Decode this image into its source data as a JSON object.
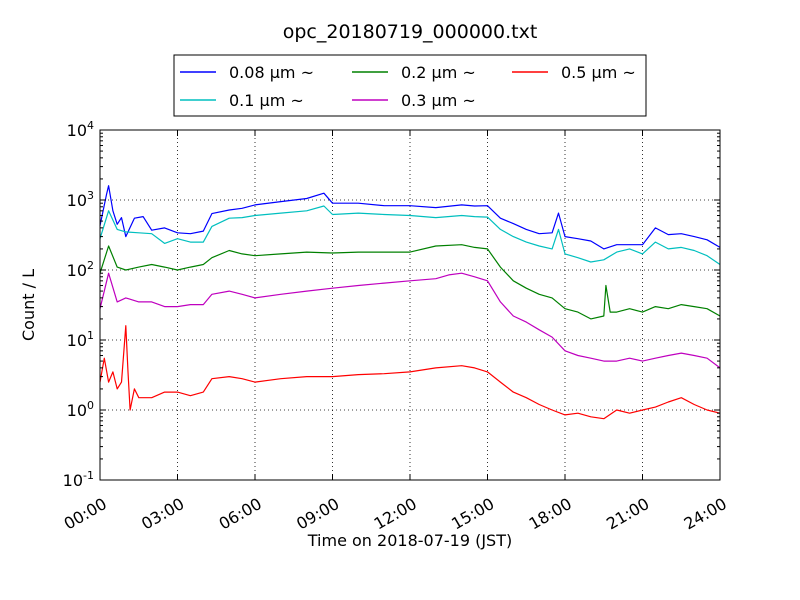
{
  "chart_data": {
    "type": "line",
    "title": "opc_20180719_000000.txt",
    "xlabel": "Time on 2018-07-19 (JST)",
    "ylabel": "Count / L",
    "y_scale": "log",
    "ylim": [
      0.1,
      10000
    ],
    "xlim": [
      "00:00",
      "24:00"
    ],
    "grid": true,
    "legend_position": "top",
    "x_ticks": [
      "00:00",
      "03:00",
      "06:00",
      "09:00",
      "12:00",
      "15:00",
      "18:00",
      "21:00",
      "24:00"
    ],
    "y_ticks": [
      {
        "base": "10",
        "exp": "-1"
      },
      {
        "base": "10",
        "exp": "0"
      },
      {
        "base": "10",
        "exp": "1"
      },
      {
        "base": "10",
        "exp": "2"
      },
      {
        "base": "10",
        "exp": "3"
      },
      {
        "base": "10",
        "exp": "4"
      }
    ],
    "series": [
      {
        "name": "0.08 μm ~",
        "color": "#0000ff",
        "x": [
          "00:00",
          "00:15",
          "00:20",
          "00:30",
          "00:40",
          "00:50",
          "01:00",
          "01:20",
          "01:40",
          "02:00",
          "02:30",
          "03:00",
          "03:30",
          "04:00",
          "04:20",
          "05:00",
          "05:30",
          "06:00",
          "07:00",
          "08:00",
          "08:40",
          "09:00",
          "10:00",
          "11:00",
          "12:00",
          "13:00",
          "14:00",
          "14:30",
          "15:00",
          "15:30",
          "16:00",
          "16:30",
          "17:00",
          "17:30",
          "17:45",
          "18:00",
          "18:30",
          "19:00",
          "19:30",
          "20:00",
          "20:30",
          "21:00",
          "21:30",
          "22:00",
          "22:30",
          "23:00",
          "23:30",
          "24:00"
        ],
        "values": [
          430,
          1200,
          1600,
          700,
          450,
          560,
          300,
          550,
          580,
          370,
          400,
          340,
          330,
          360,
          640,
          720,
          760,
          850,
          950,
          1050,
          1250,
          900,
          900,
          830,
          830,
          780,
          850,
          820,
          830,
          550,
          460,
          380,
          330,
          340,
          650,
          300,
          280,
          260,
          200,
          230,
          230,
          230,
          400,
          320,
          330,
          300,
          270,
          210
        ]
      },
      {
        "name": "0.1 μm ~",
        "color": "#00bfbf",
        "x": [
          "00:00",
          "00:20",
          "00:40",
          "01:00",
          "01:30",
          "02:00",
          "02:30",
          "03:00",
          "03:30",
          "04:00",
          "04:20",
          "05:00",
          "05:30",
          "06:00",
          "07:00",
          "08:00",
          "08:40",
          "09:00",
          "10:00",
          "11:00",
          "12:00",
          "13:00",
          "14:00",
          "14:30",
          "15:00",
          "15:30",
          "16:00",
          "16:30",
          "17:00",
          "17:30",
          "17:45",
          "18:00",
          "18:30",
          "19:00",
          "19:30",
          "20:00",
          "20:30",
          "21:00",
          "21:30",
          "22:00",
          "22:30",
          "23:00",
          "23:30",
          "24:00"
        ],
        "values": [
          280,
          700,
          380,
          350,
          340,
          330,
          240,
          280,
          250,
          250,
          420,
          550,
          560,
          600,
          650,
          700,
          820,
          620,
          650,
          620,
          600,
          560,
          600,
          580,
          570,
          380,
          300,
          250,
          220,
          200,
          380,
          170,
          150,
          130,
          140,
          180,
          200,
          170,
          250,
          200,
          210,
          190,
          160,
          120
        ]
      },
      {
        "name": "0.2 μm ~",
        "color": "#008000",
        "x": [
          "00:00",
          "00:20",
          "00:40",
          "01:00",
          "01:30",
          "02:00",
          "02:30",
          "03:00",
          "03:30",
          "04:00",
          "04:20",
          "05:00",
          "05:30",
          "06:00",
          "07:00",
          "08:00",
          "09:00",
          "10:00",
          "11:00",
          "12:00",
          "13:00",
          "14:00",
          "14:30",
          "15:00",
          "15:30",
          "16:00",
          "16:30",
          "17:00",
          "17:30",
          "18:00",
          "18:30",
          "19:00",
          "19:30",
          "19:35",
          "19:45",
          "20:00",
          "20:30",
          "21:00",
          "21:30",
          "22:00",
          "22:30",
          "23:00",
          "23:30",
          "24:00"
        ],
        "values": [
          90,
          220,
          110,
          100,
          110,
          120,
          110,
          100,
          110,
          120,
          150,
          190,
          170,
          160,
          170,
          180,
          175,
          180,
          180,
          180,
          220,
          230,
          210,
          200,
          110,
          70,
          55,
          45,
          40,
          28,
          25,
          20,
          22,
          60,
          25,
          25,
          28,
          25,
          30,
          28,
          32,
          30,
          28,
          22
        ]
      },
      {
        "name": "0.3 μm ~",
        "color": "#bf00bf",
        "x": [
          "00:00",
          "00:20",
          "00:40",
          "01:00",
          "01:30",
          "02:00",
          "02:30",
          "03:00",
          "03:30",
          "04:00",
          "04:20",
          "05:00",
          "05:30",
          "06:00",
          "07:00",
          "08:00",
          "09:00",
          "10:00",
          "11:00",
          "12:00",
          "13:00",
          "13:30",
          "14:00",
          "14:30",
          "15:00",
          "15:30",
          "16:00",
          "16:30",
          "17:00",
          "17:30",
          "18:00",
          "18:30",
          "19:00",
          "19:30",
          "20:00",
          "20:30",
          "21:00",
          "21:30",
          "22:00",
          "22:30",
          "23:00",
          "23:30",
          "24:00"
        ],
        "values": [
          28,
          90,
          35,
          40,
          35,
          35,
          30,
          30,
          32,
          32,
          45,
          50,
          45,
          40,
          45,
          50,
          55,
          60,
          65,
          70,
          75,
          85,
          90,
          80,
          70,
          35,
          22,
          18,
          14,
          11,
          7,
          6,
          5.5,
          5,
          5,
          5.5,
          5,
          5.5,
          6,
          6.5,
          6,
          5.5,
          4
        ]
      },
      {
        "name": "0.5 μm ~",
        "color": "#ff0000",
        "x": [
          "00:00",
          "00:10",
          "00:20",
          "00:30",
          "00:40",
          "00:50",
          "01:00",
          "01:05",
          "01:10",
          "01:20",
          "01:30",
          "02:00",
          "02:30",
          "03:00",
          "03:30",
          "04:00",
          "04:20",
          "05:00",
          "05:30",
          "06:00",
          "07:00",
          "08:00",
          "09:00",
          "10:00",
          "11:00",
          "12:00",
          "13:00",
          "14:00",
          "14:30",
          "15:00",
          "15:30",
          "16:00",
          "16:30",
          "17:00",
          "17:30",
          "18:00",
          "18:30",
          "19:00",
          "19:30",
          "20:00",
          "20:30",
          "21:00",
          "21:30",
          "22:00",
          "22:30",
          "23:00",
          "23:30",
          "24:00"
        ],
        "values": [
          2.5,
          5.5,
          2.5,
          3.5,
          2.0,
          2.5,
          16,
          3.5,
          1.0,
          2.0,
          1.5,
          1.5,
          1.8,
          1.8,
          1.6,
          1.8,
          2.8,
          3.0,
          2.8,
          2.5,
          2.8,
          3.0,
          3.0,
          3.2,
          3.3,
          3.5,
          4.0,
          4.3,
          4.0,
          3.5,
          2.5,
          1.8,
          1.5,
          1.2,
          1.0,
          0.85,
          0.9,
          0.8,
          0.75,
          1.0,
          0.9,
          1.0,
          1.1,
          1.3,
          1.5,
          1.2,
          1.0,
          0.9
        ]
      }
    ]
  }
}
